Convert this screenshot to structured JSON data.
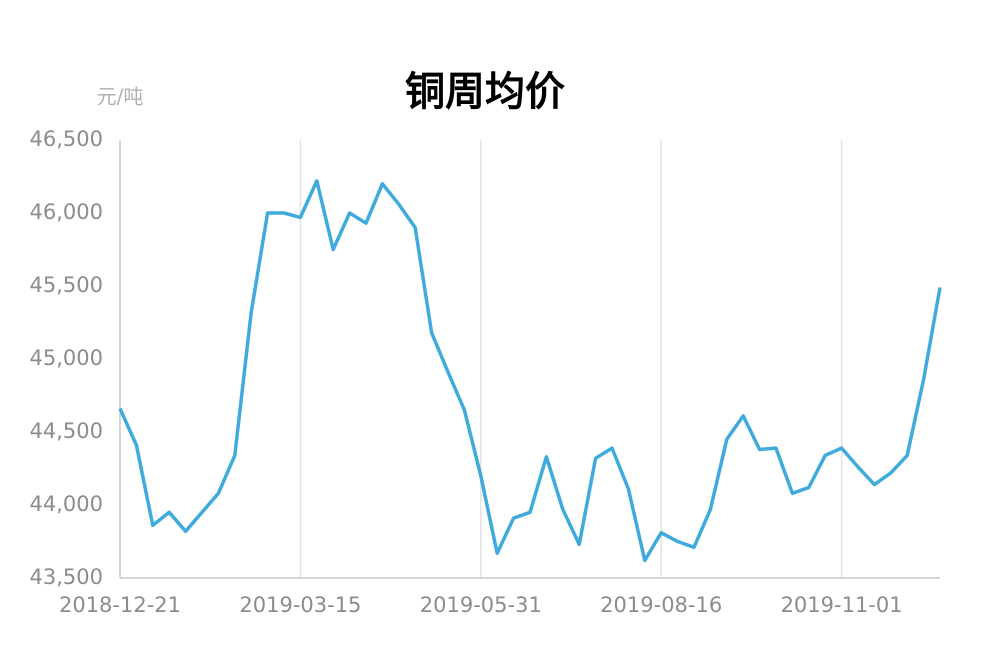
{
  "chart_data": {
    "type": "line",
    "title": "铜周均价",
    "y_label": "元/吨",
    "categories": [
      "2018-12-21",
      null,
      null,
      null,
      null,
      null,
      null,
      null,
      null,
      null,
      null,
      "2019-03-15",
      null,
      null,
      null,
      null,
      null,
      null,
      null,
      null,
      null,
      null,
      "2019-05-31",
      null,
      null,
      null,
      null,
      null,
      null,
      null,
      null,
      null,
      null,
      "2019-08-16",
      null,
      null,
      null,
      null,
      null,
      null,
      null,
      null,
      null,
      null,
      "2019-11-01",
      null,
      null,
      null,
      null,
      null,
      null
    ],
    "series": [
      {
        "name": "铜周均价",
        "color": "#3fabdd",
        "values": [
          44660,
          44410,
          43860,
          43950,
          43820,
          43950,
          44080,
          44340,
          45320,
          46000,
          46000,
          45970,
          46220,
          45750,
          46000,
          45930,
          46200,
          46060,
          45900,
          45180,
          44910,
          44650,
          44200,
          43670,
          43910,
          43950,
          44330,
          43970,
          43730,
          44320,
          44390,
          44110,
          43620,
          43810,
          43750,
          43710,
          43970,
          44450,
          44610,
          44380,
          44390,
          44080,
          44120,
          44340,
          44390,
          44260,
          44140,
          44220,
          44340,
          44860,
          45490
        ]
      }
    ],
    "ylim": [
      43500,
      46500
    ],
    "yticks": [
      {
        "value": 43500,
        "label": "43,500"
      },
      {
        "value": 44000,
        "label": "44,000"
      },
      {
        "value": 44500,
        "label": "44,500"
      },
      {
        "value": 45000,
        "label": "45,000"
      },
      {
        "value": 45500,
        "label": "45,500"
      },
      {
        "value": 46000,
        "label": "46,000"
      },
      {
        "value": 46500,
        "label": "46,500"
      }
    ],
    "grid": true
  }
}
